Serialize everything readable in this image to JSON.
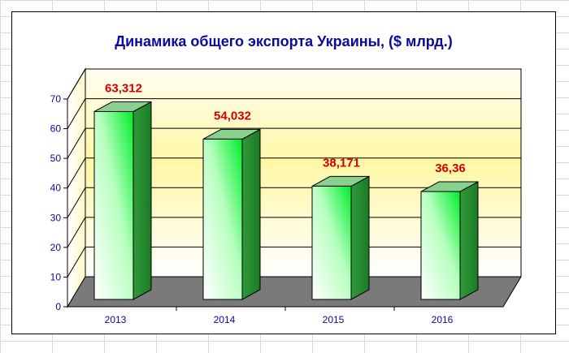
{
  "chart_data": {
    "type": "bar",
    "title": "Динамика общего экспорта Украины, ($ млрд.)",
    "categories": [
      "2013",
      "2014",
      "2015",
      "2016"
    ],
    "values": [
      63.312,
      54.032,
      38.171,
      36.36
    ],
    "data_labels": [
      "63,312",
      "54,032",
      "38,171",
      "36,36"
    ],
    "y_ticks": [
      "0",
      "10",
      "20",
      "30",
      "40",
      "50",
      "60",
      "70"
    ],
    "ylim": [
      0,
      70
    ],
    "xlabel": "",
    "ylabel": "",
    "grid": true,
    "legend": "none",
    "style": "3d"
  },
  "colors": {
    "title": "#0a0aa0",
    "tick_labels": "#0a0aa0",
    "data_labels": "#d40000",
    "bar_light": "#ffffff",
    "bar_dark": "#00ee2a",
    "bar_side": "#1b7a25",
    "bar_top": "#8ad08e",
    "floor": "#7a7a7a",
    "wall_band": "#fff7a6"
  }
}
